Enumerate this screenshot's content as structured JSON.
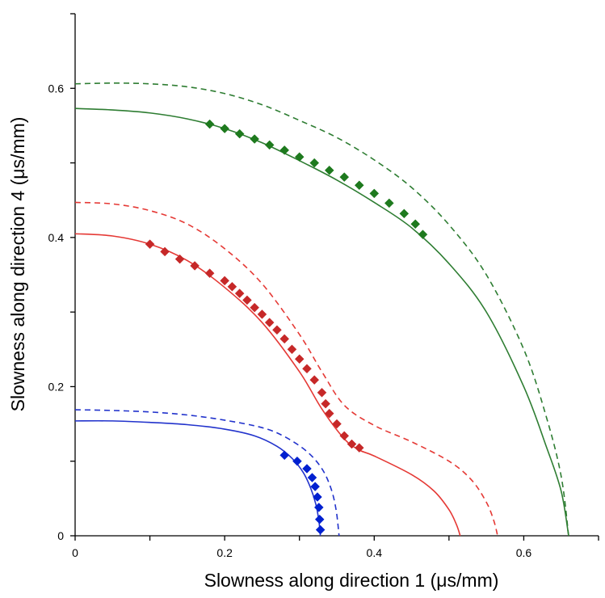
{
  "chart_data": {
    "type": "line",
    "title": "",
    "xlabel": "Slowness along direction 1 (μs/mm)",
    "ylabel": "Slowness along direction 4 (μs/mm)",
    "xlim": [
      0,
      0.7
    ],
    "ylim": [
      0,
      0.7
    ],
    "xticks": [
      {
        "value": 0,
        "label": "0"
      },
      {
        "value": 0.1,
        "label": ""
      },
      {
        "value": 0.2,
        "label": "0.2"
      },
      {
        "value": 0.3,
        "label": ""
      },
      {
        "value": 0.4,
        "label": "0.4"
      },
      {
        "value": 0.5,
        "label": ""
      },
      {
        "value": 0.6,
        "label": "0.6"
      },
      {
        "value": 0.7,
        "label": ""
      }
    ],
    "yticks": [
      {
        "value": 0,
        "label": "0"
      },
      {
        "value": 0.1,
        "label": ""
      },
      {
        "value": 0.2,
        "label": "0.2"
      },
      {
        "value": 0.3,
        "label": ""
      },
      {
        "value": 0.4,
        "label": "0.4"
      },
      {
        "value": 0.5,
        "label": ""
      },
      {
        "value": 0.6,
        "label": "0.6"
      },
      {
        "value": 0.7,
        "label": ""
      }
    ],
    "grid": false,
    "legend": "none",
    "series": [
      {
        "color": "#2e7d32",
        "style": "solid",
        "marker": "none",
        "x": [
          0,
          0.05,
          0.1,
          0.15,
          0.2,
          0.25,
          0.3,
          0.35,
          0.4,
          0.45,
          0.5,
          0.55,
          0.6,
          0.63,
          0.65,
          0.66
        ],
        "y": [
          0.573,
          0.571,
          0.567,
          0.559,
          0.546,
          0.527,
          0.503,
          0.477,
          0.447,
          0.413,
          0.365,
          0.3,
          0.2,
          0.12,
          0.06,
          0
        ]
      },
      {
        "color": "#2e7d32",
        "style": "dashed",
        "marker": "none",
        "x": [
          0,
          0.05,
          0.1,
          0.15,
          0.2,
          0.25,
          0.3,
          0.35,
          0.4,
          0.45,
          0.5,
          0.55,
          0.6,
          0.63,
          0.65,
          0.66
        ],
        "y": [
          0.606,
          0.607,
          0.606,
          0.602,
          0.593,
          0.578,
          0.557,
          0.534,
          0.504,
          0.467,
          0.417,
          0.35,
          0.25,
          0.16,
          0.08,
          0
        ]
      },
      {
        "color": "#1e7a1e",
        "style": "none",
        "marker": "diamond",
        "x": [
          0.18,
          0.2,
          0.22,
          0.24,
          0.26,
          0.28,
          0.3,
          0.32,
          0.34,
          0.36,
          0.38,
          0.4,
          0.42,
          0.44,
          0.455,
          0.465
        ],
        "y": [
          0.552,
          0.546,
          0.539,
          0.532,
          0.524,
          0.517,
          0.508,
          0.5,
          0.49,
          0.481,
          0.47,
          0.459,
          0.446,
          0.432,
          0.418,
          0.404
        ]
      },
      {
        "color": "#e53935",
        "style": "solid",
        "marker": "none",
        "x": [
          0,
          0.05,
          0.1,
          0.15,
          0.2,
          0.25,
          0.3,
          0.33,
          0.36,
          0.38,
          0.4,
          0.45,
          0.48,
          0.5,
          0.51,
          0.515
        ],
        "y": [
          0.405,
          0.402,
          0.391,
          0.369,
          0.333,
          0.286,
          0.22,
          0.17,
          0.13,
          0.115,
          0.107,
          0.082,
          0.06,
          0.035,
          0.015,
          0
        ]
      },
      {
        "color": "#e53935",
        "style": "dashed",
        "marker": "none",
        "x": [
          0,
          0.05,
          0.1,
          0.15,
          0.2,
          0.25,
          0.3,
          0.33,
          0.36,
          0.4,
          0.45,
          0.5,
          0.53,
          0.55,
          0.56,
          0.565
        ],
        "y": [
          0.447,
          0.445,
          0.436,
          0.418,
          0.385,
          0.338,
          0.27,
          0.22,
          0.175,
          0.148,
          0.126,
          0.1,
          0.075,
          0.045,
          0.02,
          0
        ]
      },
      {
        "color": "#c62828",
        "style": "none",
        "marker": "diamond",
        "x": [
          0.1,
          0.12,
          0.14,
          0.16,
          0.18,
          0.2,
          0.21,
          0.22,
          0.23,
          0.24,
          0.25,
          0.26,
          0.27,
          0.28,
          0.29,
          0.3,
          0.31,
          0.32,
          0.33,
          0.335,
          0.34,
          0.35,
          0.36,
          0.37,
          0.38
        ],
        "y": [
          0.391,
          0.381,
          0.371,
          0.362,
          0.352,
          0.342,
          0.334,
          0.325,
          0.316,
          0.306,
          0.297,
          0.286,
          0.276,
          0.264,
          0.25,
          0.237,
          0.224,
          0.209,
          0.192,
          0.177,
          0.164,
          0.15,
          0.134,
          0.123,
          0.118
        ]
      },
      {
        "color": "#2233cc",
        "style": "solid",
        "marker": "none",
        "x": [
          0,
          0.05,
          0.1,
          0.15,
          0.2,
          0.24,
          0.27,
          0.29,
          0.305,
          0.315,
          0.322,
          0.326,
          0.328
        ],
        "y": [
          0.154,
          0.154,
          0.152,
          0.149,
          0.143,
          0.134,
          0.12,
          0.104,
          0.085,
          0.064,
          0.042,
          0.02,
          0
        ]
      },
      {
        "color": "#2233cc",
        "style": "dashed",
        "marker": "none",
        "x": [
          0,
          0.05,
          0.1,
          0.15,
          0.2,
          0.25,
          0.28,
          0.31,
          0.33,
          0.342,
          0.349,
          0.353
        ],
        "y": [
          0.169,
          0.168,
          0.166,
          0.162,
          0.155,
          0.145,
          0.133,
          0.113,
          0.09,
          0.064,
          0.035,
          0
        ]
      },
      {
        "color": "#0020d0",
        "style": "none",
        "marker": "diamond",
        "x": [
          0.28,
          0.297,
          0.31,
          0.317,
          0.321,
          0.324,
          0.326,
          0.327,
          0.328
        ],
        "y": [
          0.108,
          0.1,
          0.09,
          0.078,
          0.066,
          0.052,
          0.038,
          0.022,
          0.008
        ]
      }
    ]
  }
}
